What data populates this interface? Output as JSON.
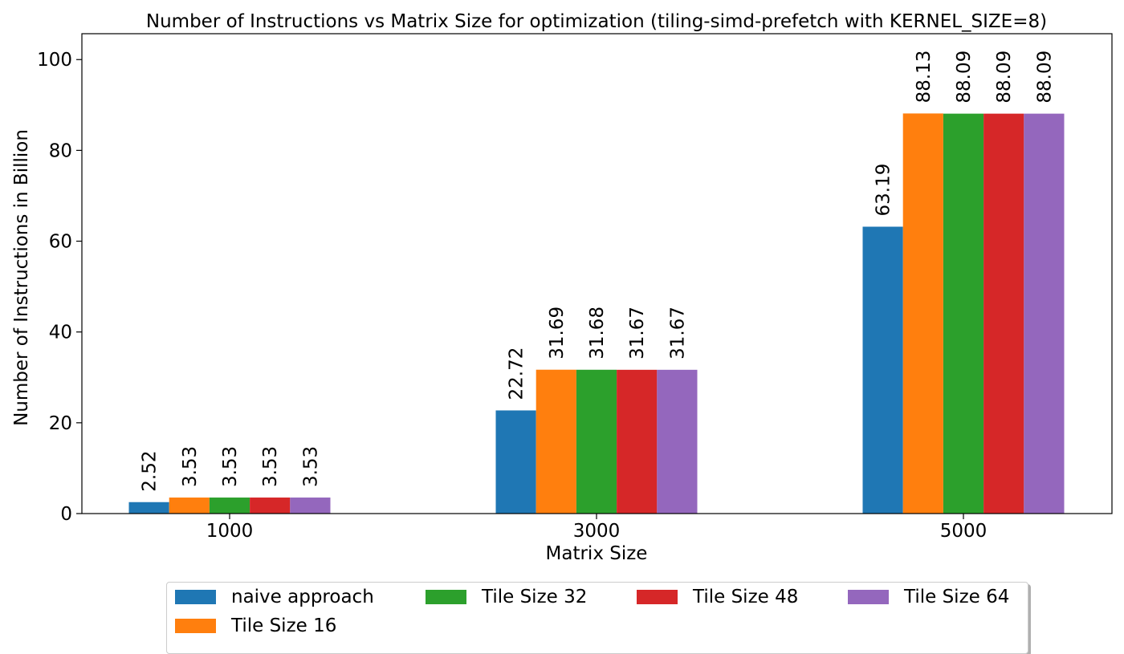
{
  "chart_data": {
    "type": "bar",
    "title": "Number of Instructions vs Matrix Size for optimization (tiling-simd-prefetch with KERNEL_SIZE=8)",
    "xlabel": "Matrix Size",
    "ylabel": "Number of Instructions in Billion",
    "categories": [
      "1000",
      "3000",
      "5000"
    ],
    "ylim": [
      0,
      105.7
    ],
    "yticks": [
      0,
      20,
      40,
      60,
      80,
      100
    ],
    "grid": false,
    "legend_position": "bottom-center",
    "series": [
      {
        "name": "naive approach",
        "color": "#1f77b4",
        "values": [
          2.52,
          22.72,
          63.19
        ],
        "labels": [
          "2.52",
          "22.72",
          "63.19"
        ]
      },
      {
        "name": "Tile Size 16",
        "color": "#ff7f0e",
        "values": [
          3.53,
          31.69,
          88.13
        ],
        "labels": [
          "3.53",
          "31.69",
          "88.13"
        ]
      },
      {
        "name": "Tile Size 32",
        "color": "#2ca02c",
        "values": [
          3.53,
          31.68,
          88.09
        ],
        "labels": [
          "3.53",
          "31.68",
          "88.09"
        ]
      },
      {
        "name": "Tile Size 48",
        "color": "#d62728",
        "values": [
          3.53,
          31.67,
          88.09
        ],
        "labels": [
          "3.53",
          "31.67",
          "88.09"
        ]
      },
      {
        "name": "Tile Size 64",
        "color": "#9467bd",
        "values": [
          3.53,
          31.67,
          88.09
        ],
        "labels": [
          "3.53",
          "31.67",
          "88.09"
        ]
      }
    ]
  }
}
